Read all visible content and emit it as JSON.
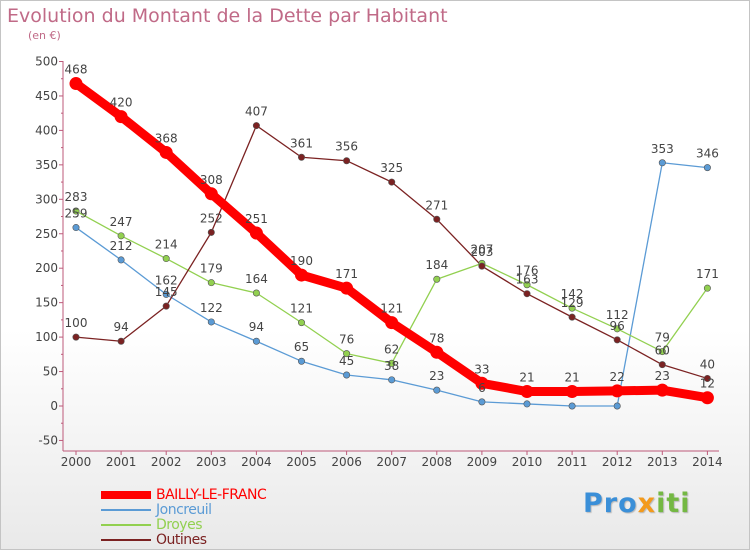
{
  "title": "Evolution du Montant de la Dette par Habitant",
  "unit_label": "(en €)",
  "brand": {
    "part1": "Pro",
    "part2": "x",
    "part3": "iti"
  },
  "colors": {
    "bailly": "#ff0000",
    "joncreuil": "#5b9bd5",
    "droyes": "#92d050",
    "outines": "#7b2222",
    "axis": "#bd5a7a",
    "label": "#444444",
    "title": "#c06a87"
  },
  "chart_data": {
    "type": "line",
    "title": "Evolution du Montant de la Dette par Habitant",
    "ylabel": "(en €)",
    "xlabel": "",
    "ylim": [
      -50,
      500
    ],
    "yticks": [
      -50,
      0,
      50,
      100,
      150,
      200,
      250,
      300,
      350,
      400,
      450,
      500
    ],
    "x": [
      "2000",
      "2001",
      "2002",
      "2003",
      "2004",
      "2005",
      "2006",
      "2007",
      "2008",
      "2009",
      "2010",
      "2011",
      "2012",
      "2013",
      "2014"
    ],
    "grid": false,
    "legend_position": "bottom-left",
    "series": [
      {
        "name": "BAILLY-LE-FRANC",
        "color": "#ff0000",
        "emphasis": true,
        "values": [
          468,
          420,
          368,
          308,
          251,
          190,
          171,
          121,
          78,
          33,
          21,
          21,
          22,
          23,
          12
        ],
        "labels": [
          "468",
          "420",
          "368",
          "308",
          "251",
          "190",
          "171",
          "121",
          "78",
          "33",
          "21",
          "21",
          "22",
          "23",
          "12"
        ]
      },
      {
        "name": "Joncreuil",
        "color": "#5b9bd5",
        "emphasis": false,
        "values": [
          259,
          212,
          162,
          122,
          94,
          65,
          45,
          38,
          23,
          6,
          3,
          0,
          0,
          353,
          346
        ],
        "labels": [
          "259",
          "212",
          "162",
          "122",
          "94",
          "65",
          "45",
          "38",
          "23",
          "6",
          "",
          "",
          "",
          "353",
          "346"
        ]
      },
      {
        "name": "Droyes",
        "color": "#92d050",
        "emphasis": false,
        "values": [
          283,
          247,
          214,
          179,
          164,
          121,
          76,
          62,
          184,
          207,
          176,
          142,
          112,
          79,
          171
        ],
        "labels": [
          "283",
          "247",
          "214",
          "179",
          "164",
          "121",
          "76",
          "62",
          "184",
          "207",
          "176",
          "142",
          "112",
          "79",
          "171"
        ]
      },
      {
        "name": "Outines",
        "color": "#7b2222",
        "emphasis": false,
        "values": [
          100,
          94,
          145,
          252,
          407,
          361,
          356,
          325,
          271,
          203,
          163,
          129,
          96,
          60,
          40
        ],
        "labels": [
          "100",
          "94",
          "145",
          "252",
          "407",
          "361",
          "356",
          "325",
          "271",
          "203",
          "163",
          "129",
          "96",
          "60",
          "40"
        ]
      }
    ]
  }
}
